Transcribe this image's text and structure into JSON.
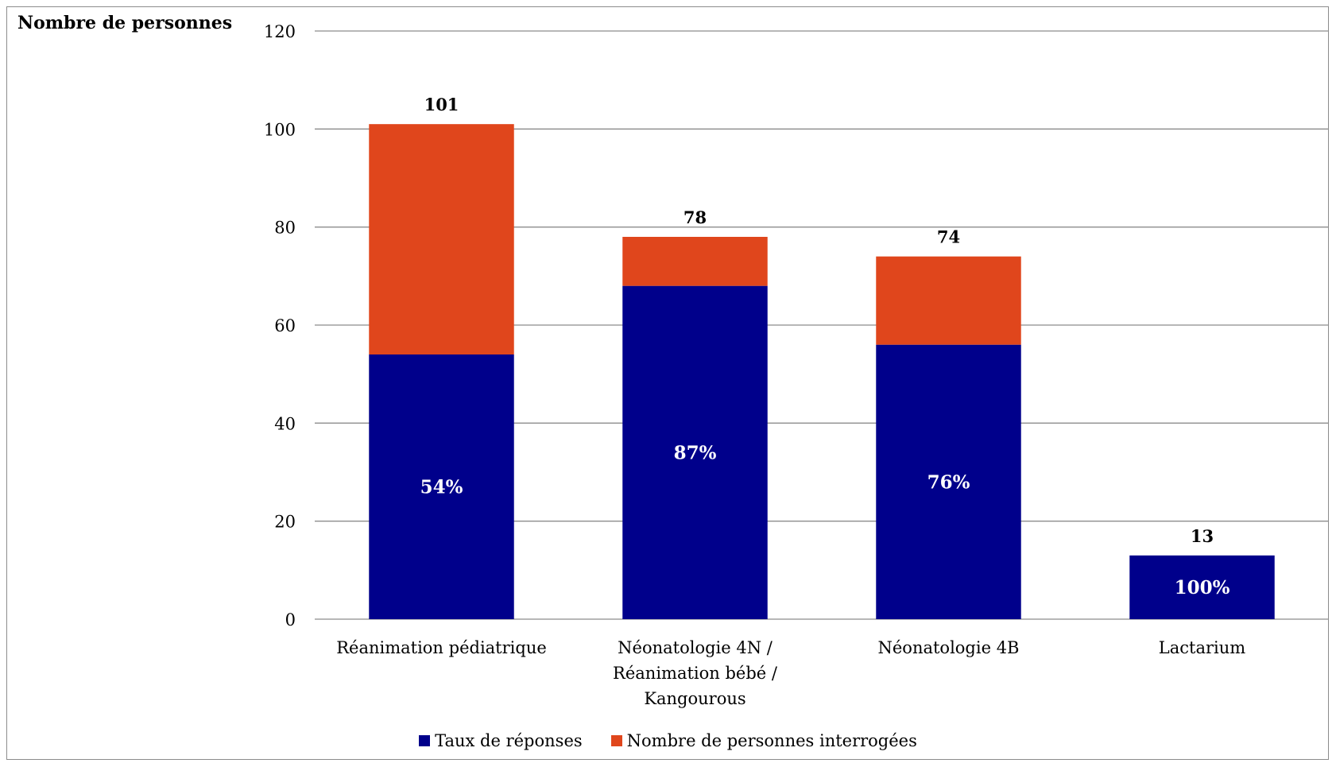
{
  "chart_data": {
    "type": "bar",
    "stacked": true,
    "ytitle": "Nombre de personnes",
    "ylim": [
      0,
      120
    ],
    "yticks": [
      0,
      20,
      40,
      60,
      80,
      100,
      120
    ],
    "grid": true,
    "legend_position": "bottom",
    "categories": [
      [
        "Réanimation pédiatrique"
      ],
      [
        "Néonatologie 4N /",
        "Réanimation bébé /",
        "Kangourous"
      ],
      [
        "Néonatologie 4B"
      ],
      [
        "Lactarium"
      ]
    ],
    "series": [
      {
        "name": "Taux de réponses",
        "color": "#00008b",
        "values": [
          54,
          68,
          56,
          13
        ]
      },
      {
        "name": "Nombre de personnes interrogées",
        "color": "#e0461c",
        "values": [
          47,
          10,
          18,
          0
        ]
      }
    ],
    "totals": [
      101,
      78,
      74,
      13
    ],
    "response_rate_labels": [
      "54%",
      "87%",
      "76%",
      "100%"
    ]
  }
}
